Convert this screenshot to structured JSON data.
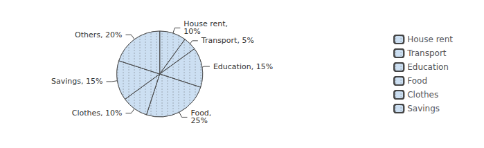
{
  "chart_data": {
    "type": "pie",
    "categories": [
      "House rent",
      "Transport",
      "Education",
      "Food",
      "Clothes",
      "Savings",
      "Others"
    ],
    "values": [
      10,
      5,
      15,
      25,
      10,
      15,
      20
    ],
    "value_labels": [
      "House rent,\n10%",
      "Transport, 5%",
      "Education, 15%",
      "Food,\n25%",
      "Clothes, 10%",
      "Savings, 15%",
      "Others, 20%"
    ],
    "data_labels": true,
    "color": "#ccdff2",
    "legend": "right",
    "legend_entries": [
      "House rent",
      "Transport",
      "Education",
      "Food",
      "Clothes",
      "Savings"
    ]
  }
}
